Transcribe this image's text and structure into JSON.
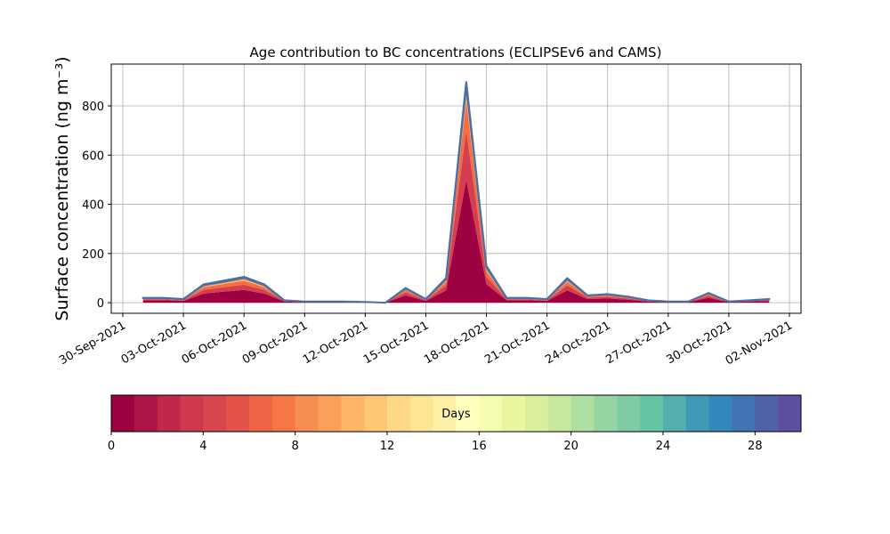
{
  "chart_data": {
    "type": "stacked_area",
    "title": "Age contribution to BC concentrations (ECLIPSEv6 and CAMS)",
    "y_label": "Surface concentration (ng m⁻³)",
    "x": [
      "2021-10-01",
      "2021-10-02",
      "2021-10-03",
      "2021-10-04",
      "2021-10-05",
      "2021-10-06",
      "2021-10-07",
      "2021-10-08",
      "2021-10-09",
      "2021-10-10",
      "2021-10-11",
      "2021-10-12",
      "2021-10-13",
      "2021-10-14",
      "2021-10-15",
      "2021-10-16",
      "2021-10-17",
      "2021-10-18",
      "2021-10-19",
      "2021-10-20",
      "2021-10-21",
      "2021-10-22",
      "2021-10-23",
      "2021-10-24",
      "2021-10-25",
      "2021-10-26",
      "2021-10-27",
      "2021-10-28",
      "2021-10-29",
      "2021-10-30",
      "2021-10-31",
      "2021-11-01"
    ],
    "series": [
      {
        "color": "#9e0142",
        "values": [
          10,
          10,
          7,
          37,
          45,
          52,
          37,
          5,
          2,
          2,
          2,
          1,
          0,
          30,
          7,
          50,
          500,
          75,
          10,
          10,
          7,
          50,
          15,
          17,
          12,
          5,
          2,
          2,
          20,
          2,
          5,
          7
        ]
      },
      {
        "color": "#d53e4f",
        "values": [
          4,
          4,
          3,
          15,
          18,
          21,
          15,
          2,
          1,
          1,
          1,
          1,
          0,
          12,
          3,
          20,
          200,
          30,
          4,
          4,
          3,
          20,
          6,
          7,
          5,
          2,
          1,
          1,
          8,
          1,
          2,
          3
        ]
      },
      {
        "color": "#f46d43",
        "values": [
          3,
          3,
          2,
          11,
          13,
          16,
          11,
          1,
          1,
          1,
          1,
          0,
          0,
          9,
          2,
          15,
          120,
          23,
          3,
          3,
          2,
          15,
          5,
          5,
          4,
          1,
          1,
          1,
          6,
          1,
          1,
          2
        ]
      },
      {
        "color": "#fdae61",
        "values": [
          2,
          2,
          2,
          8,
          9,
          11,
          8,
          1,
          1,
          1,
          1,
          1,
          0,
          6,
          2,
          10,
          60,
          15,
          2,
          2,
          2,
          10,
          3,
          4,
          3,
          1,
          1,
          1,
          4,
          1,
          1,
          2
        ]
      },
      {
        "color": "#4a6fa5",
        "values": [
          1,
          1,
          1,
          4,
          5,
          5,
          4,
          1,
          0,
          0,
          0,
          0,
          0,
          3,
          1,
          5,
          20,
          7,
          1,
          1,
          1,
          5,
          1,
          2,
          1,
          1,
          0,
          0,
          2,
          0,
          1,
          1
        ]
      }
    ],
    "xlim": [
      "2021-09-30",
      "2021-11-02"
    ],
    "xticks": [
      {
        "value": "2021-09-30",
        "label": "30-Sep-2021"
      },
      {
        "value": "2021-10-03",
        "label": "03-Oct-2021"
      },
      {
        "value": "2021-10-06",
        "label": "06-Oct-2021"
      },
      {
        "value": "2021-10-09",
        "label": "09-Oct-2021"
      },
      {
        "value": "2021-10-12",
        "label": "12-Oct-2021"
      },
      {
        "value": "2021-10-15",
        "label": "15-Oct-2021"
      },
      {
        "value": "2021-10-18",
        "label": "18-Oct-2021"
      },
      {
        "value": "2021-10-21",
        "label": "21-Oct-2021"
      },
      {
        "value": "2021-10-24",
        "label": "24-Oct-2021"
      },
      {
        "value": "2021-10-27",
        "label": "27-Oct-2021"
      },
      {
        "value": "2021-10-30",
        "label": "30-Oct-2021"
      },
      {
        "value": "2021-11-02",
        "label": "02-Nov-2021"
      }
    ],
    "ylim": [
      -43,
      970
    ],
    "yticks": [
      0,
      200,
      400,
      600,
      800
    ],
    "grid": true,
    "colorbar": {
      "label": "Days",
      "lim": [
        0,
        30
      ],
      "ticks": [
        0,
        4,
        8,
        12,
        16,
        20,
        24,
        28
      ],
      "colors": [
        "#9e0142",
        "#af1446",
        "#c0274a",
        "#d0384e",
        "#da464d",
        "#e4524a",
        "#ee6445",
        "#f57748",
        "#f88d52",
        "#fba05b",
        "#fdb567",
        "#fdc675",
        "#fed884",
        "#fee593",
        "#fff0a8",
        "#ffffbe",
        "#f5fbaf",
        "#e9f69d",
        "#d9ef9b",
        "#c7e89e",
        "#b0dfa2",
        "#96d4a4",
        "#7ecba4",
        "#66c2a5",
        "#54aead",
        "#4198b6",
        "#3288bd",
        "#4274b3",
        "#5161a8",
        "#5e4fa2"
      ]
    }
  }
}
